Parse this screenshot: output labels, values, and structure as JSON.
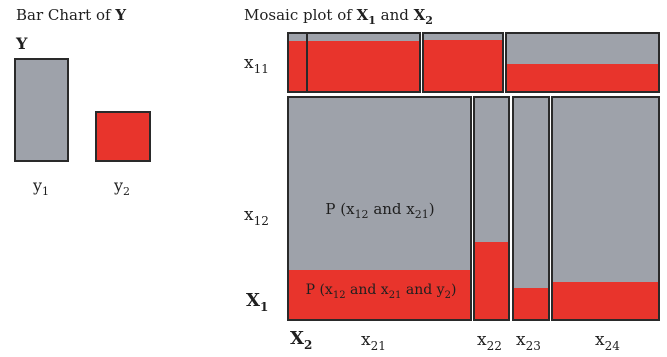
{
  "left_panel": {
    "title_prefix": "Bar Chart of ",
    "title_var": "Y",
    "var_label": "Y",
    "bars": [
      {
        "label_base": "y",
        "label_sub": "1",
        "color": "gray"
      },
      {
        "label_base": "y",
        "label_sub": "2",
        "color": "red"
      }
    ]
  },
  "right_panel": {
    "title_prefix": "Mosaic plot of ",
    "title_x1_base": "X",
    "title_x1_sub": "1",
    "title_and": " and ",
    "title_x2_base": "X",
    "title_x2_sub": "2",
    "row_labels": [
      {
        "base": "x",
        "sub": "11"
      },
      {
        "base": "x",
        "sub": "12"
      }
    ],
    "row_axis": {
      "base": "X",
      "sub": "1"
    },
    "col_axis": {
      "base": "X",
      "sub": "2"
    },
    "col_labels": [
      {
        "base": "x",
        "sub": "21"
      },
      {
        "base": "x",
        "sub": "22"
      },
      {
        "base": "x",
        "sub": "23"
      },
      {
        "base": "x",
        "sub": "24"
      }
    ],
    "annotation_gray": {
      "p": "P (x",
      "s1": "12",
      "mid": " and x",
      "s2": "21",
      "end": ")"
    },
    "annotation_red": {
      "p": "P (x",
      "s1": "12",
      "mid1": " and x",
      "s2": "21",
      "mid2": " and y",
      "s3": "2",
      "end": ")"
    }
  },
  "colors": {
    "gray": "#9ea2aa",
    "red": "#e8342c",
    "frame": "#2a2a2a"
  }
}
